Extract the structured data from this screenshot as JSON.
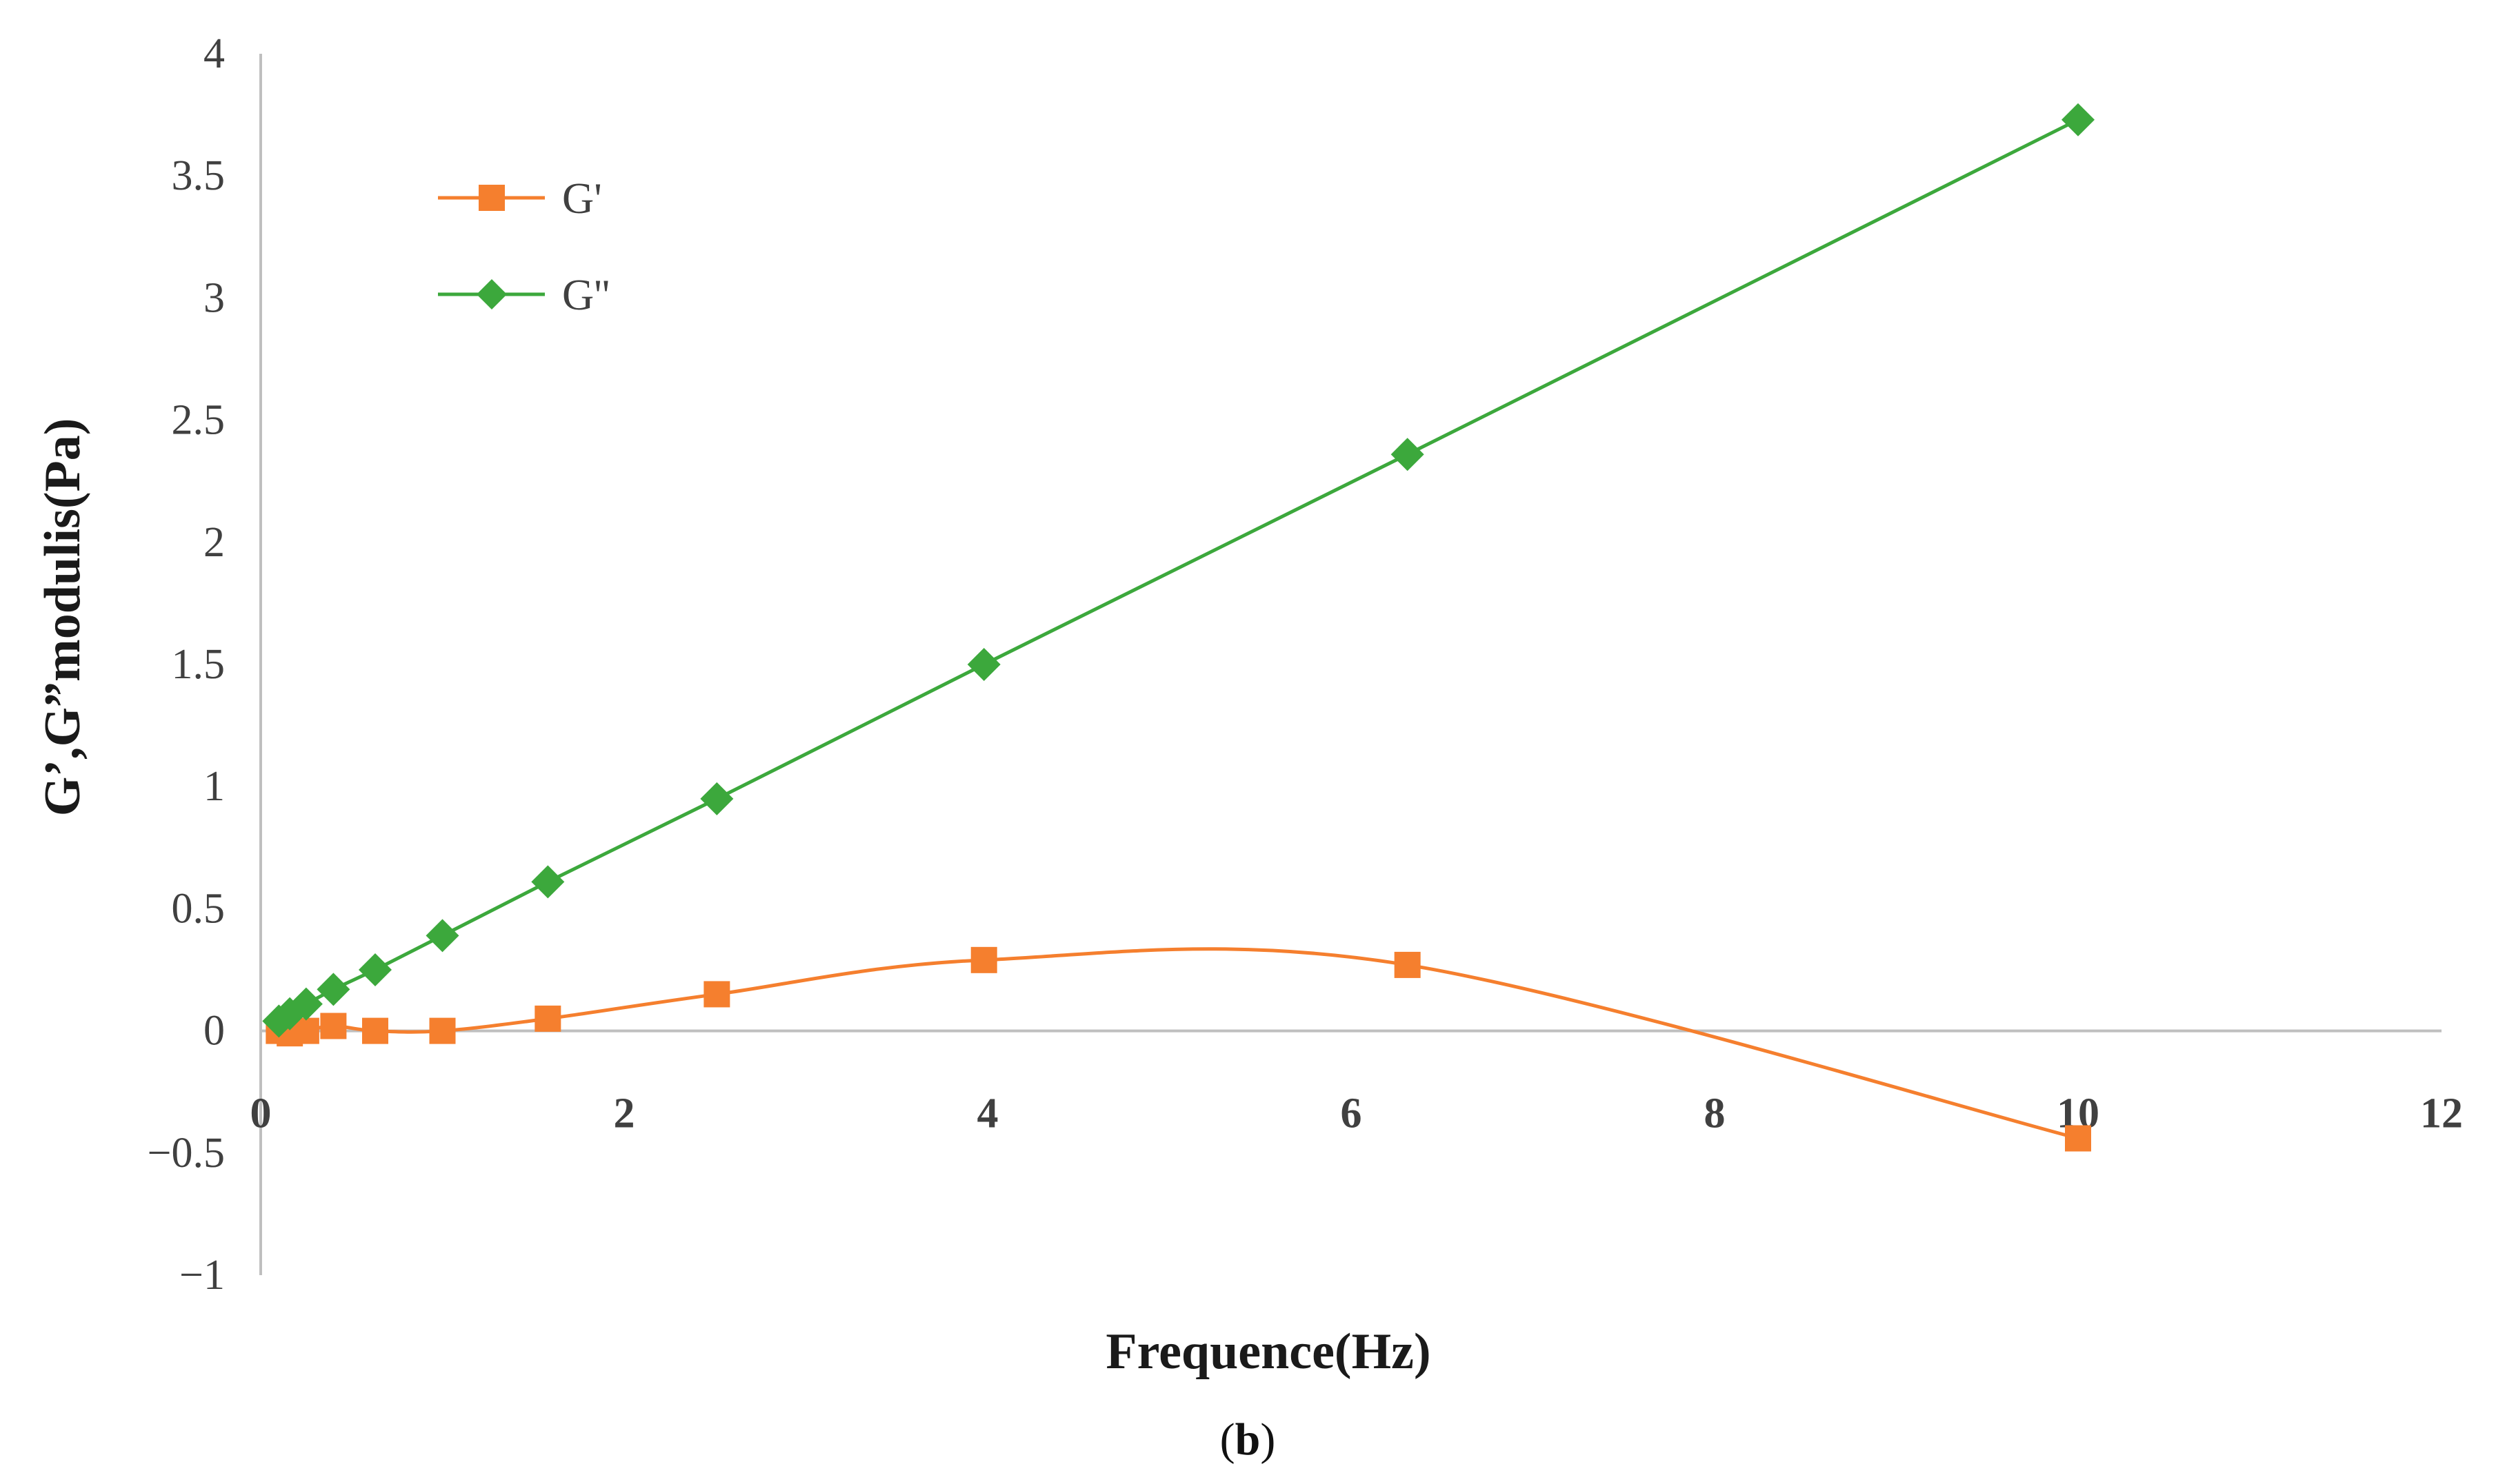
{
  "chart_data": {
    "type": "line",
    "xlabel": "Frequence(Hz)",
    "ylabel": "G’,G”modulis(Pa)",
    "caption_prefix": "(",
    "caption_letter": "b",
    "caption_suffix": ")",
    "xlim": [
      0,
      12
    ],
    "ylim": [
      -1,
      4
    ],
    "x_ticks": [
      0,
      2,
      4,
      6,
      8,
      10,
      12
    ],
    "y_ticks": [
      4,
      3.5,
      3,
      2.5,
      2,
      1.5,
      1,
      0.5,
      0,
      -0.5,
      -1
    ],
    "x_tick_labels": [
      "0",
      "2",
      "4",
      "6",
      "8",
      "10",
      "12"
    ],
    "y_tick_labels": [
      "4",
      "3.5",
      "3",
      "2.5",
      "2",
      "1.5",
      "1",
      "0.5",
      "0",
      "−0.5",
      "−1"
    ],
    "grid": false,
    "legend_position": "top-left",
    "series": [
      {
        "name": "G'",
        "color": "#f57f2e",
        "marker": "square",
        "smooth": true,
        "x": [
          0.1,
          0.16,
          0.25,
          0.4,
          0.63,
          1.0,
          1.58,
          2.51,
          3.98,
          6.31,
          10.0
        ],
        "values": [
          0.0,
          -0.01,
          0.0,
          0.02,
          0.0,
          0.0,
          0.05,
          0.15,
          0.29,
          0.27,
          -0.44
        ]
      },
      {
        "name": "G''",
        "color": "#3ca83c",
        "marker": "diamond",
        "smooth": false,
        "x": [
          0.1,
          0.16,
          0.25,
          0.4,
          0.63,
          1.0,
          1.58,
          2.51,
          3.98,
          6.31,
          10.0
        ],
        "values": [
          0.04,
          0.07,
          0.11,
          0.17,
          0.25,
          0.39,
          0.61,
          0.95,
          1.5,
          2.36,
          3.73
        ]
      }
    ]
  }
}
